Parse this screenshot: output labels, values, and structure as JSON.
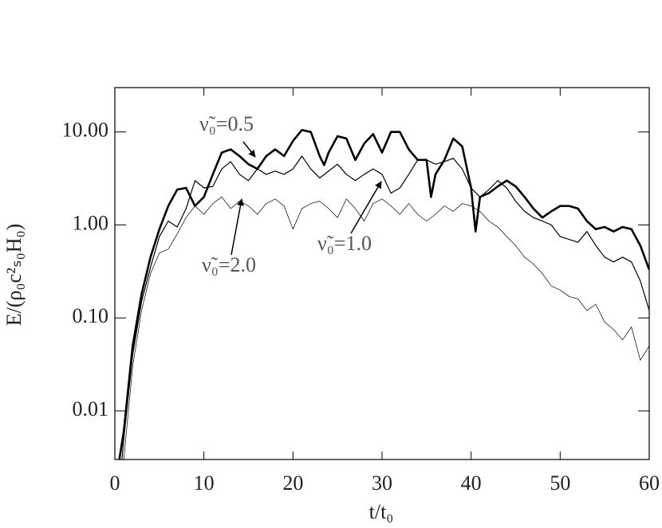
{
  "chart_data": {
    "type": "line",
    "xlabel": "t/t₀",
    "ylabel": "E/(ρ₀c²ₛ₀H₀)",
    "xlim": [
      0,
      60
    ],
    "xticks": [
      0,
      10,
      20,
      30,
      40,
      50,
      60
    ],
    "ylim": [
      0.003,
      30
    ],
    "log_y": true,
    "yticks": [
      {
        "value": 0.01,
        "label": "0.01"
      },
      {
        "value": 0.1,
        "label": "0.10"
      },
      {
        "value": 1,
        "label": "1.00"
      },
      {
        "value": 10,
        "label": "10.00"
      }
    ],
    "annotations": [
      "ν̃₀=0.5",
      "ν̃₀=1.0",
      "ν̃₀=2.0"
    ],
    "series": [
      {
        "color": "#000000",
        "line_width": 2.6,
        "x": [
          0.5,
          1,
          2,
          3,
          4,
          5,
          6,
          7,
          8,
          9,
          10,
          11,
          12,
          13,
          14,
          15,
          16,
          17,
          18,
          19,
          20,
          21,
          22,
          23,
          23.5,
          24,
          25,
          26,
          27,
          28,
          29,
          30,
          31,
          32,
          33,
          34,
          35,
          35.5,
          36,
          37,
          38,
          39,
          40,
          40.5,
          41,
          42,
          43,
          44,
          45,
          46,
          47,
          48,
          49,
          50,
          51,
          52,
          53,
          54,
          55,
          56,
          57,
          58,
          59,
          60
        ],
        "values": [
          0.003,
          0.006,
          0.05,
          0.18,
          0.45,
          0.9,
          1.6,
          2.4,
          2.5,
          1.6,
          2.0,
          3.5,
          6.0,
          6.5,
          5.5,
          4.5,
          4.0,
          5.5,
          6.5,
          5.5,
          8,
          10.5,
          10,
          5.5,
          4.4,
          6,
          9,
          8.5,
          5,
          7.5,
          9.5,
          6,
          10,
          10,
          6.5,
          5,
          5,
          2.0,
          3.5,
          5,
          8.5,
          7,
          2.5,
          0.85,
          2.0,
          2.2,
          2.6,
          3.0,
          2.6,
          2.0,
          1.5,
          1.2,
          1.4,
          1.6,
          1.6,
          1.5,
          1.1,
          0.9,
          0.95,
          0.85,
          0.95,
          0.9,
          0.6,
          0.33
        ]
      },
      {
        "color": "#000000",
        "line_width": 1.2,
        "x": [
          0.8,
          1,
          2,
          3,
          4,
          5,
          6,
          7,
          8,
          9,
          10,
          11,
          12,
          13,
          14,
          15,
          16,
          17,
          18,
          19,
          20,
          21,
          22,
          23,
          24,
          25,
          26,
          27,
          28,
          29,
          30,
          31,
          32,
          33,
          34,
          35,
          36,
          37,
          38,
          39,
          40,
          41,
          42,
          43,
          44,
          45,
          46,
          47,
          48,
          49,
          50,
          51,
          52,
          53,
          54,
          55,
          56,
          57,
          58,
          59,
          60
        ],
        "values": [
          0.003,
          0.005,
          0.04,
          0.15,
          0.35,
          0.75,
          1.1,
          0.95,
          1.5,
          3.0,
          2.5,
          2.6,
          4.0,
          4.8,
          3.5,
          3.0,
          4.0,
          3.5,
          3.8,
          3.5,
          4.0,
          5.5,
          4.0,
          3.2,
          3.8,
          4.5,
          3.5,
          3.0,
          3.5,
          4.0,
          3.5,
          2.2,
          2.5,
          3.5,
          5.0,
          5.0,
          4.5,
          4.8,
          5.2,
          4.0,
          2.5,
          2.0,
          2.4,
          3.0,
          2.5,
          1.8,
          1.4,
          1.2,
          1.1,
          1.0,
          0.75,
          0.7,
          0.65,
          0.85,
          0.6,
          0.45,
          0.4,
          0.45,
          0.4,
          0.25,
          0.12
        ]
      },
      {
        "color": "#000000",
        "line_width": 0.7,
        "x": [
          1,
          2,
          3,
          4,
          5,
          6,
          7,
          8,
          9,
          10,
          11,
          12,
          13,
          14,
          15,
          16,
          17,
          18,
          19,
          20,
          21,
          22,
          23,
          24,
          25,
          26,
          27,
          28,
          29,
          30,
          31,
          32,
          33,
          34,
          35,
          36,
          37,
          38,
          39,
          40,
          41,
          42,
          43,
          44,
          45,
          46,
          47,
          48,
          49,
          50,
          51,
          52,
          53,
          54,
          55,
          56,
          57,
          58,
          59,
          60
        ],
        "values": [
          0.003,
          0.03,
          0.12,
          0.3,
          0.5,
          0.55,
          0.8,
          1.2,
          1.6,
          1.3,
          1.7,
          2.0,
          1.5,
          1.8,
          1.6,
          1.3,
          1.7,
          1.9,
          1.6,
          0.9,
          1.5,
          1.7,
          1.8,
          1.5,
          1.2,
          1.9,
          1.5,
          1.1,
          1.7,
          1.9,
          1.6,
          1.3,
          1.7,
          1.3,
          1.1,
          1.3,
          1.6,
          1.4,
          1.7,
          1.6,
          1.4,
          1.1,
          0.95,
          0.75,
          0.6,
          0.45,
          0.38,
          0.3,
          0.22,
          0.2,
          0.17,
          0.16,
          0.12,
          0.14,
          0.09,
          0.075,
          0.058,
          0.08,
          0.035,
          0.05
        ]
      }
    ]
  }
}
